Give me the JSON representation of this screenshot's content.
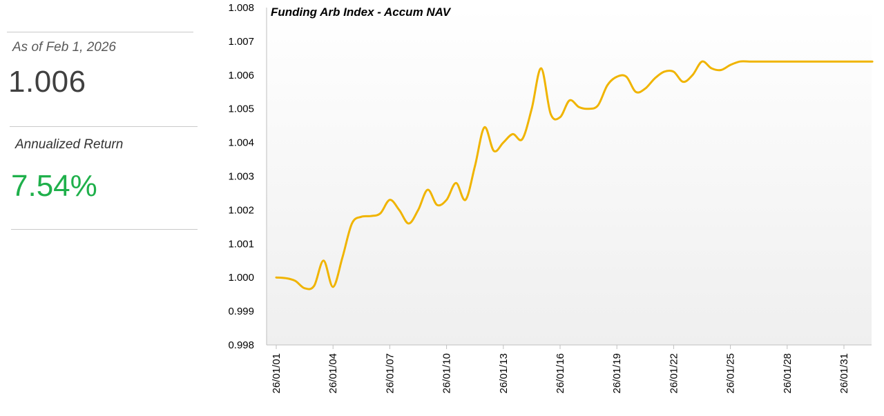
{
  "summary": {
    "as_of_label": "As of  Feb 1, 2026",
    "nav_value": "1.006",
    "return_label": "Annualized Return",
    "return_value": "7.54%"
  },
  "colors": {
    "line": "#F0B400",
    "return_green": "#1FB04B",
    "axis": "#BFBFBF",
    "plot_bg_top": "#FFFFFF",
    "plot_bg_bottom": "#EFEFEF"
  },
  "chart_data": {
    "type": "line",
    "title": "Funding Arb Index - Accum NAV",
    "xlabel": "",
    "ylabel": "",
    "ylim": [
      0.998,
      1.008
    ],
    "yticks": [
      "0.998",
      "0.999",
      "1.000",
      "1.001",
      "1.002",
      "1.003",
      "1.004",
      "1.005",
      "1.006",
      "1.007",
      "1.008"
    ],
    "xticks": [
      "26/01/01",
      "26/01/04",
      "26/01/07",
      "26/01/10",
      "26/01/13",
      "26/01/16",
      "26/01/19",
      "26/01/22",
      "26/01/25",
      "26/01/28",
      "26/01/31"
    ],
    "grid": false,
    "series": [
      {
        "name": "Accum NAV",
        "x": [
          0,
          0.5,
          1,
          1.5,
          2,
          2.5,
          3,
          3.5,
          4,
          4.5,
          5,
          5.5,
          6,
          6.5,
          7,
          7.5,
          8,
          8.5,
          9,
          9.5,
          10,
          10.5,
          11,
          11.5,
          12,
          12.5,
          13,
          13.5,
          14,
          14.5,
          15,
          15.5,
          16,
          16.5,
          17,
          17.5,
          18,
          18.5,
          19,
          19.5,
          20,
          20.5,
          21,
          21.5,
          22,
          22.5,
          23,
          23.5,
          24,
          24.5,
          25,
          25.5,
          26,
          26.5,
          27,
          27.5,
          28,
          28.5,
          29,
          29.5,
          30,
          30.5,
          31,
          31.5
        ],
        "values": [
          1.0,
          0.99998,
          0.9999,
          0.99968,
          0.99975,
          1.0005,
          0.99972,
          1.0006,
          1.0016,
          1.0018,
          1.00182,
          1.0019,
          1.0023,
          1.002,
          1.0016,
          1.002,
          1.0026,
          1.00215,
          1.0023,
          1.0028,
          1.0023,
          1.0033,
          1.00445,
          1.00375,
          1.004,
          1.00425,
          1.0041,
          1.005,
          1.0062,
          1.00485,
          1.00475,
          1.00525,
          1.00505,
          1.005,
          1.0051,
          1.0057,
          1.00595,
          1.00595,
          1.0055,
          1.0056,
          1.0059,
          1.0061,
          1.0061,
          1.0058,
          1.006,
          1.0064,
          1.0062,
          1.00615,
          1.0063,
          1.0064,
          1.0064,
          1.0064,
          1.0064,
          1.0064,
          1.0064,
          1.0064,
          1.0064,
          1.0064,
          1.0064,
          1.0064,
          1.0064,
          1.0064,
          1.0064,
          1.0064
        ]
      }
    ]
  }
}
